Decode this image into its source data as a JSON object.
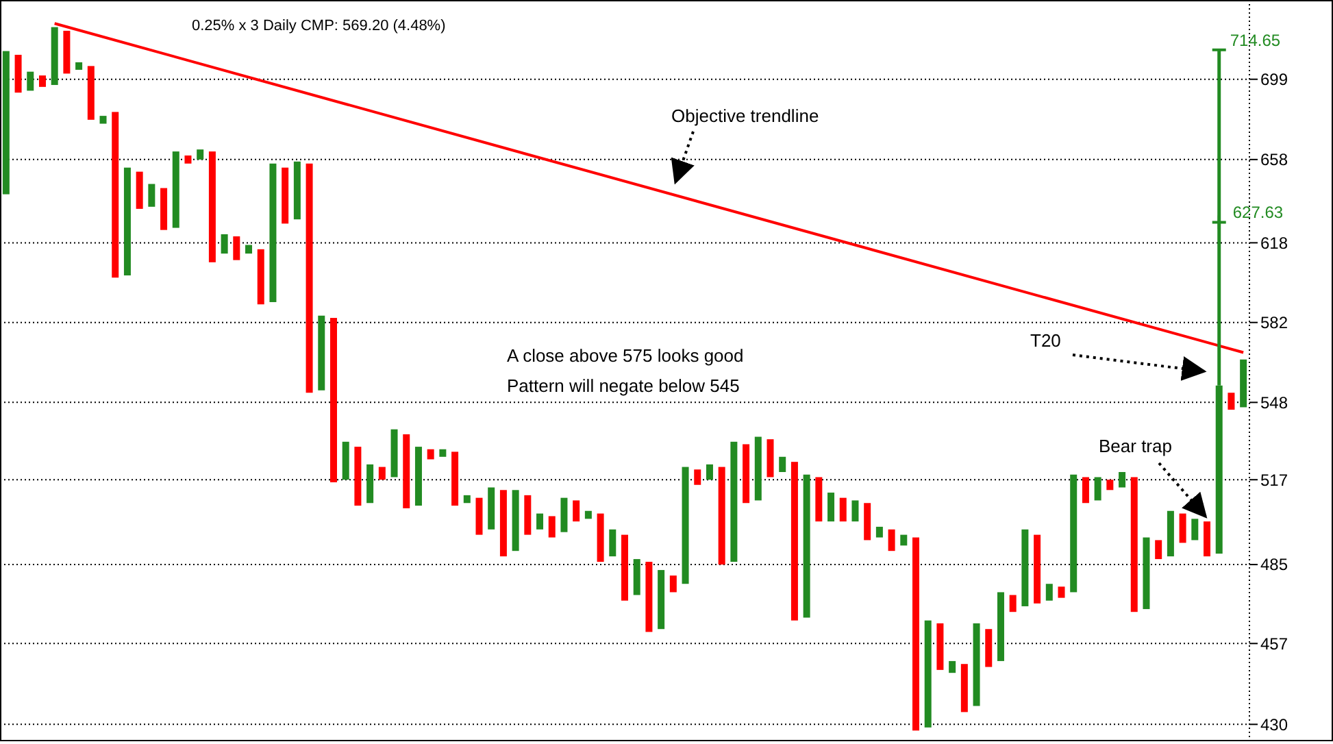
{
  "chart_data": {
    "type": "bar",
    "title": "0.25%  x 3 Daily CMP: 569.20 (4.48%)",
    "categories": [
      null,
      null,
      null,
      null,
      null,
      null,
      null,
      null,
      null,
      null,
      null,
      null,
      null,
      null,
      null,
      null,
      null,
      null,
      null,
      null,
      null,
      null,
      null,
      null,
      null,
      null,
      null,
      null,
      null,
      null,
      null,
      null,
      null,
      null,
      null,
      null,
      null,
      null,
      null,
      null,
      null,
      null,
      null,
      null,
      null,
      null,
      null,
      null,
      null,
      null,
      null,
      null,
      null,
      null,
      null,
      null,
      null,
      null,
      null,
      null,
      null,
      null,
      null,
      null,
      null,
      null,
      null,
      null,
      null,
      null,
      null,
      null,
      null,
      null,
      null,
      null,
      null,
      null,
      null,
      null,
      null,
      null,
      null,
      null,
      null,
      null,
      null,
      null,
      null,
      null,
      null,
      null,
      null,
      null,
      null,
      null,
      null,
      null,
      null,
      null,
      null,
      null,
      null
    ],
    "base": [
      641,
      692,
      693,
      695,
      696,
      702,
      704,
      678,
      676,
      602,
      603,
      634,
      635,
      624,
      625,
      656,
      658,
      609,
      613,
      610,
      613,
      590,
      591,
      627,
      629,
      552,
      553,
      516,
      517,
      507,
      508,
      517,
      518,
      506,
      507,
      525,
      526,
      507,
      508,
      496,
      498,
      488,
      490,
      496,
      498,
      495,
      497,
      501,
      502,
      486,
      488,
      472,
      474,
      461,
      462,
      475,
      478,
      515,
      517,
      485,
      486,
      508,
      509,
      518,
      520,
      465,
      466,
      501,
      501,
      501,
      501,
      494,
      495,
      490,
      492,
      428,
      429,
      448,
      447,
      434,
      436,
      449,
      451,
      468,
      470,
      471,
      472,
      473,
      475,
      508,
      509,
      513,
      514,
      468,
      469,
      487,
      488,
      493,
      494,
      488,
      489,
      545,
      546
    ],
    "values": [
      73,
      20,
      10,
      6,
      31,
      23,
      4,
      28,
      4,
      80,
      51,
      18,
      11,
      20,
      37,
      4,
      5,
      53,
      9,
      11,
      4,
      25,
      65,
      27,
      28,
      104,
      32,
      68,
      15,
      23,
      15,
      5,
      19,
      29,
      23,
      4,
      3,
      21,
      3,
      14,
      16,
      25,
      23,
      15,
      6,
      8,
      13,
      8,
      3,
      18,
      10,
      24,
      13,
      25,
      21,
      6,
      44,
      6,
      6,
      37,
      46,
      23,
      25,
      15,
      6,
      59,
      53,
      17,
      11,
      9,
      8,
      14,
      4,
      8,
      4,
      67,
      36,
      16,
      4,
      16,
      28,
      13,
      24,
      6,
      28,
      25,
      6,
      4,
      44,
      10,
      9,
      4,
      6,
      50,
      26,
      7,
      17,
      11,
      8,
      13,
      66,
      7,
      20
    ],
    "colors": [
      "#228b22",
      "#ff0000",
      "#228b22",
      "#ff0000",
      "#228b22",
      "#ff0000",
      "#228b22",
      "#ff0000",
      "#228b22",
      "#ff0000",
      "#228b22",
      "#ff0000",
      "#228b22",
      "#ff0000",
      "#228b22",
      "#ff0000",
      "#228b22",
      "#ff0000",
      "#228b22",
      "#ff0000",
      "#228b22",
      "#ff0000",
      "#228b22",
      "#ff0000",
      "#228b22",
      "#ff0000",
      "#228b22",
      "#ff0000",
      "#228b22",
      "#ff0000",
      "#228b22",
      "#ff0000",
      "#228b22",
      "#ff0000",
      "#228b22",
      "#ff0000",
      "#228b22",
      "#ff0000",
      "#228b22",
      "#ff0000",
      "#228b22",
      "#ff0000",
      "#228b22",
      "#ff0000",
      "#228b22",
      "#ff0000",
      "#228b22",
      "#ff0000",
      "#228b22",
      "#ff0000",
      "#228b22",
      "#ff0000",
      "#228b22",
      "#ff0000",
      "#228b22",
      "#ff0000",
      "#228b22",
      "#ff0000",
      "#228b22",
      "#ff0000",
      "#228b22",
      "#ff0000",
      "#228b22",
      "#ff0000",
      "#228b22",
      "#ff0000",
      "#228b22",
      "#ff0000",
      "#228b22",
      "#ff0000",
      "#228b22",
      "#ff0000",
      "#228b22",
      "#ff0000",
      "#228b22",
      "#ff0000",
      "#228b22",
      "#ff0000",
      "#228b22",
      "#ff0000",
      "#228b22",
      "#ff0000",
      "#228b22",
      "#ff0000",
      "#228b22",
      "#ff0000",
      "#228b22",
      "#ff0000",
      "#228b22",
      "#ff0000",
      "#228b22",
      "#ff0000",
      "#228b22",
      "#ff0000",
      "#228b22",
      "#ff0000",
      "#228b22",
      "#ff0000",
      "#228b22",
      "#ff0000",
      "#228b22",
      "#ff0000",
      "#228b22"
    ],
    "errors": [
      null,
      null,
      null,
      null,
      null,
      null,
      null,
      null,
      null,
      null,
      null,
      null,
      null,
      null,
      null,
      null,
      null,
      null,
      null,
      null,
      null,
      null,
      null,
      null,
      null,
      null,
      null,
      null,
      null,
      null,
      null,
      null,
      null,
      null,
      null,
      null,
      null,
      null,
      null,
      null,
      null,
      null,
      null,
      null,
      null,
      null,
      null,
      null,
      null,
      null,
      null,
      null,
      null,
      null,
      null,
      null,
      null,
      null,
      null,
      null,
      null,
      null,
      null,
      null,
      null,
      null,
      null,
      null,
      null,
      null,
      null,
      null,
      null,
      null,
      null,
      null,
      null,
      null,
      null,
      null,
      null,
      null,
      null,
      null,
      null,
      null,
      null,
      null,
      null,
      null,
      null,
      null,
      null,
      null,
      null,
      null,
      null,
      null,
      null,
      null,
      [
        555,
        714.65
      ],
      null,
      null
    ],
    "series": [
      {
        "type": "scatter",
        "marker": "cross",
        "color": "#228b22",
        "values": [
          null,
          null,
          null,
          null,
          null,
          null,
          null,
          null,
          null,
          null,
          null,
          null,
          null,
          null,
          null,
          null,
          null,
          null,
          null,
          null,
          null,
          null,
          null,
          null,
          null,
          null,
          null,
          null,
          null,
          null,
          null,
          null,
          null,
          null,
          null,
          null,
          null,
          null,
          null,
          null,
          null,
          null,
          null,
          null,
          null,
          null,
          null,
          null,
          null,
          null,
          null,
          null,
          null,
          null,
          null,
          null,
          null,
          null,
          null,
          null,
          null,
          null,
          null,
          null,
          null,
          null,
          null,
          null,
          null,
          null,
          null,
          null,
          null,
          null,
          null,
          null,
          null,
          null,
          null,
          null,
          null,
          null,
          null,
          null,
          null,
          null,
          null,
          null,
          null,
          null,
          null,
          null,
          null,
          null,
          null,
          null,
          null,
          null,
          null,
          null,
          627.63,
          null,
          null
        ]
      },
      {
        "type": "line",
        "color": "#ff0000",
        "values": [
          null,
          null,
          null,
          null,
          729,
          null,
          null,
          null,
          null,
          null,
          null,
          null,
          null,
          null,
          null,
          null,
          null,
          null,
          null,
          null,
          null,
          null,
          null,
          null,
          null,
          null,
          null,
          null,
          null,
          null,
          null,
          null,
          null,
          null,
          null,
          null,
          null,
          null,
          null,
          null,
          null,
          null,
          null,
          null,
          null,
          null,
          null,
          null,
          null,
          null,
          null,
          null,
          null,
          null,
          null,
          null,
          null,
          null,
          null,
          null,
          null,
          null,
          null,
          null,
          null,
          null,
          null,
          null,
          null,
          null,
          null,
          null,
          null,
          null,
          null,
          null,
          null,
          null,
          null,
          null,
          null,
          null,
          null,
          null,
          null,
          null,
          null,
          null,
          null,
          null,
          null,
          null,
          null,
          null,
          null,
          null,
          null,
          null,
          null,
          null,
          null,
          null,
          569
        ]
      }
    ],
    "annotations": [
      "714.65",
      "627.63",
      "Objective trendline",
      "A close above 575 looks good",
      "Pattern will negate below 545",
      "T20",
      "Bear trap"
    ],
    "log": true,
    "ylim": [
      425,
      742
    ],
    "yticks": [
      430,
      457,
      485,
      517,
      548,
      582,
      618,
      658,
      699
    ],
    "grid": "y"
  }
}
